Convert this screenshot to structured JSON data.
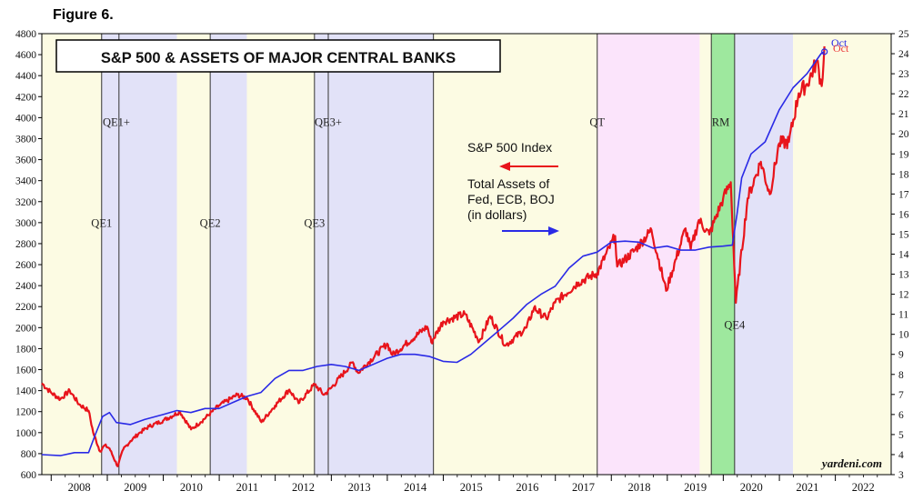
{
  "figure_label": "Figure 6.",
  "chart_data": {
    "type": "line",
    "title": "S&P 500 & ASSETS OF MAJOR CENTRAL BANKS",
    "x_range": [
      "2007-11-01",
      "2022-12-31"
    ],
    "x_ticks": [
      "2008",
      "2009",
      "2010",
      "2011",
      "2012",
      "2013",
      "2014",
      "2015",
      "2016",
      "2017",
      "2018",
      "2019",
      "2020",
      "2021",
      "2022"
    ],
    "left_axis": {
      "min": 600,
      "max": 4800,
      "step": 200,
      "ticks": [
        "600",
        "800",
        "1000",
        "1200",
        "1400",
        "1600",
        "1800",
        "2000",
        "2200",
        "2400",
        "2600",
        "2800",
        "3000",
        "3200",
        "3400",
        "3600",
        "3800",
        "4000",
        "4200",
        "4400",
        "4600",
        "4800"
      ]
    },
    "right_axis": {
      "min": 3,
      "max": 25,
      "step": 1,
      "ticks": [
        "3",
        "4",
        "5",
        "6",
        "7",
        "8",
        "9",
        "10",
        "11",
        "12",
        "13",
        "14",
        "15",
        "16",
        "17",
        "18",
        "19",
        "20",
        "21",
        "22",
        "23",
        "24",
        "25"
      ]
    },
    "legend": {
      "sp500_label": "S&P 500 Index",
      "assets_label_lines": [
        "Total Assets of",
        "Fed, ECB, BOJ",
        "(in dollars)"
      ]
    },
    "colors": {
      "sp500": "#e8141b",
      "assets": "#2a2ae6",
      "qe_shade": "#e2e2f8",
      "plain_shade": "#fcfbe3",
      "qt_shade": "#fbe4fb",
      "rm_shade": "#9ee89e"
    },
    "regimes": [
      {
        "label": "QE1",
        "upper_label": "QE1+",
        "start": "2008-11-25",
        "mid": "2009-03-18",
        "end": "2010-03-31"
      },
      {
        "label": "QE2",
        "upper_label": "",
        "start": "2010-11-03",
        "end": "2011-06-30"
      },
      {
        "label": "QE3",
        "upper_label": "QE3+",
        "start": "2012-09-13",
        "mid": "2012-12-12",
        "end": "2014-10-29"
      },
      {
        "label": "QT",
        "start": "2017-10-01",
        "end": "2019-07-31",
        "shade": "qt"
      },
      {
        "label": "RM",
        "start": "2019-10-15",
        "end": "2020-03-15",
        "shade": "rm"
      },
      {
        "label": "QE4",
        "start": "2020-03-15",
        "end": "2021-03-31",
        "shade": "qe"
      }
    ],
    "regime_labels": {
      "qe1": "QE1",
      "qe1_plus": "QE1+",
      "qe2": "QE2",
      "qe3": "QE3",
      "qe3_plus": "QE3+",
      "qt": "QT",
      "rm": "RM",
      "qe4": "QE4"
    },
    "end_labels": {
      "assets": "Oct",
      "sp500": "Oct"
    },
    "source": "yardeni.com",
    "series": [
      {
        "name": "S&P 500 Index",
        "axis": "left",
        "points": [
          [
            "2007-11-01",
            1470
          ],
          [
            "2008-01-01",
            1380
          ],
          [
            "2008-03-01",
            1320
          ],
          [
            "2008-05-01",
            1400
          ],
          [
            "2008-07-01",
            1270
          ],
          [
            "2008-09-01",
            1210
          ],
          [
            "2008-10-01",
            1000
          ],
          [
            "2008-11-15",
            820
          ],
          [
            "2008-12-15",
            880
          ],
          [
            "2009-01-15",
            850
          ],
          [
            "2009-03-09",
            680
          ],
          [
            "2009-04-15",
            840
          ],
          [
            "2009-06-01",
            920
          ],
          [
            "2009-08-01",
            1000
          ],
          [
            "2009-10-01",
            1060
          ],
          [
            "2009-12-31",
            1115
          ],
          [
            "2010-04-20",
            1200
          ],
          [
            "2010-07-01",
            1030
          ],
          [
            "2010-09-01",
            1100
          ],
          [
            "2010-12-31",
            1258
          ],
          [
            "2011-04-29",
            1360
          ],
          [
            "2011-07-01",
            1330
          ],
          [
            "2011-10-03",
            1100
          ],
          [
            "2011-12-31",
            1258
          ],
          [
            "2012-04-02",
            1410
          ],
          [
            "2012-06-01",
            1280
          ],
          [
            "2012-09-14",
            1460
          ],
          [
            "2012-11-15",
            1360
          ],
          [
            "2012-12-31",
            1426
          ],
          [
            "2013-05-21",
            1670
          ],
          [
            "2013-06-24",
            1570
          ],
          [
            "2013-12-31",
            1848
          ],
          [
            "2014-02-03",
            1740
          ],
          [
            "2014-09-18",
            2010
          ],
          [
            "2014-10-15",
            1860
          ],
          [
            "2014-12-31",
            2059
          ],
          [
            "2015-05-21",
            2130
          ],
          [
            "2015-08-24",
            1870
          ],
          [
            "2015-11-03",
            2110
          ],
          [
            "2016-02-11",
            1830
          ],
          [
            "2016-06-27",
            2000
          ],
          [
            "2016-08-15",
            2190
          ],
          [
            "2016-11-04",
            2085
          ],
          [
            "2016-12-31",
            2239
          ],
          [
            "2017-06-01",
            2430
          ],
          [
            "2017-09-30",
            2519
          ],
          [
            "2018-01-26",
            2873
          ],
          [
            "2018-02-08",
            2581
          ],
          [
            "2018-06-01",
            2734
          ],
          [
            "2018-09-20",
            2930
          ],
          [
            "2018-12-24",
            2351
          ],
          [
            "2019-04-30",
            2945
          ],
          [
            "2019-06-03",
            2744
          ],
          [
            "2019-07-26",
            3025
          ],
          [
            "2019-10-02",
            2887
          ],
          [
            "2019-12-31",
            3230
          ],
          [
            "2020-02-19",
            3386
          ],
          [
            "2020-03-23",
            2237
          ],
          [
            "2020-06-08",
            3232
          ],
          [
            "2020-09-02",
            3580
          ],
          [
            "2020-10-30",
            3270
          ],
          [
            "2020-12-31",
            3756
          ],
          [
            "2021-03-04",
            3768
          ],
          [
            "2021-05-07",
            4232
          ],
          [
            "2021-07-01",
            4320
          ],
          [
            "2021-09-02",
            4537
          ],
          [
            "2021-10-04",
            4300
          ],
          [
            "2021-10-22",
            4680
          ]
        ]
      },
      {
        "name": "Total Assets of Fed, ECB, BOJ (in dollars)",
        "axis": "right",
        "points": [
          [
            "2007-11-01",
            4.0
          ],
          [
            "2008-03-01",
            3.95
          ],
          [
            "2008-06-01",
            4.1
          ],
          [
            "2008-09-01",
            4.1
          ],
          [
            "2008-10-15",
            5.0
          ],
          [
            "2008-12-01",
            5.9
          ],
          [
            "2009-01-15",
            6.1
          ],
          [
            "2009-03-01",
            5.6
          ],
          [
            "2009-06-01",
            5.5
          ],
          [
            "2009-09-01",
            5.75
          ],
          [
            "2009-12-31",
            6.0
          ],
          [
            "2010-03-31",
            6.2
          ],
          [
            "2010-06-30",
            6.1
          ],
          [
            "2010-09-30",
            6.3
          ],
          [
            "2010-12-31",
            6.3
          ],
          [
            "2011-03-31",
            6.6
          ],
          [
            "2011-06-30",
            6.9
          ],
          [
            "2011-09-30",
            7.1
          ],
          [
            "2011-12-31",
            7.8
          ],
          [
            "2012-03-31",
            8.2
          ],
          [
            "2012-06-30",
            8.2
          ],
          [
            "2012-09-30",
            8.4
          ],
          [
            "2012-12-31",
            8.5
          ],
          [
            "2013-03-31",
            8.4
          ],
          [
            "2013-06-30",
            8.2
          ],
          [
            "2013-09-30",
            8.5
          ],
          [
            "2013-12-31",
            8.8
          ],
          [
            "2014-03-31",
            9.0
          ],
          [
            "2014-06-30",
            9.0
          ],
          [
            "2014-09-30",
            8.9
          ],
          [
            "2014-12-31",
            8.65
          ],
          [
            "2015-03-31",
            8.6
          ],
          [
            "2015-06-30",
            9.0
          ],
          [
            "2015-09-30",
            9.6
          ],
          [
            "2015-12-31",
            10.2
          ],
          [
            "2016-03-31",
            10.8
          ],
          [
            "2016-06-30",
            11.5
          ],
          [
            "2016-09-30",
            12.0
          ],
          [
            "2016-12-31",
            12.4
          ],
          [
            "2017-03-31",
            13.3
          ],
          [
            "2017-06-30",
            13.9
          ],
          [
            "2017-09-30",
            14.1
          ],
          [
            "2017-12-31",
            14.6
          ],
          [
            "2018-03-31",
            14.65
          ],
          [
            "2018-06-30",
            14.6
          ],
          [
            "2018-09-30",
            14.3
          ],
          [
            "2018-12-31",
            14.4
          ],
          [
            "2019-03-31",
            14.2
          ],
          [
            "2019-06-30",
            14.2
          ],
          [
            "2019-09-30",
            14.35
          ],
          [
            "2019-12-31",
            14.4
          ],
          [
            "2020-02-29",
            14.45
          ],
          [
            "2020-03-31",
            16.0
          ],
          [
            "2020-04-30",
            17.8
          ],
          [
            "2020-06-30",
            19.0
          ],
          [
            "2020-09-30",
            19.6
          ],
          [
            "2020-12-31",
            21.2
          ],
          [
            "2021-03-31",
            22.3
          ],
          [
            "2021-06-30",
            23.0
          ],
          [
            "2021-09-30",
            24.0
          ],
          [
            "2021-10-22",
            24.1
          ]
        ]
      }
    ]
  }
}
